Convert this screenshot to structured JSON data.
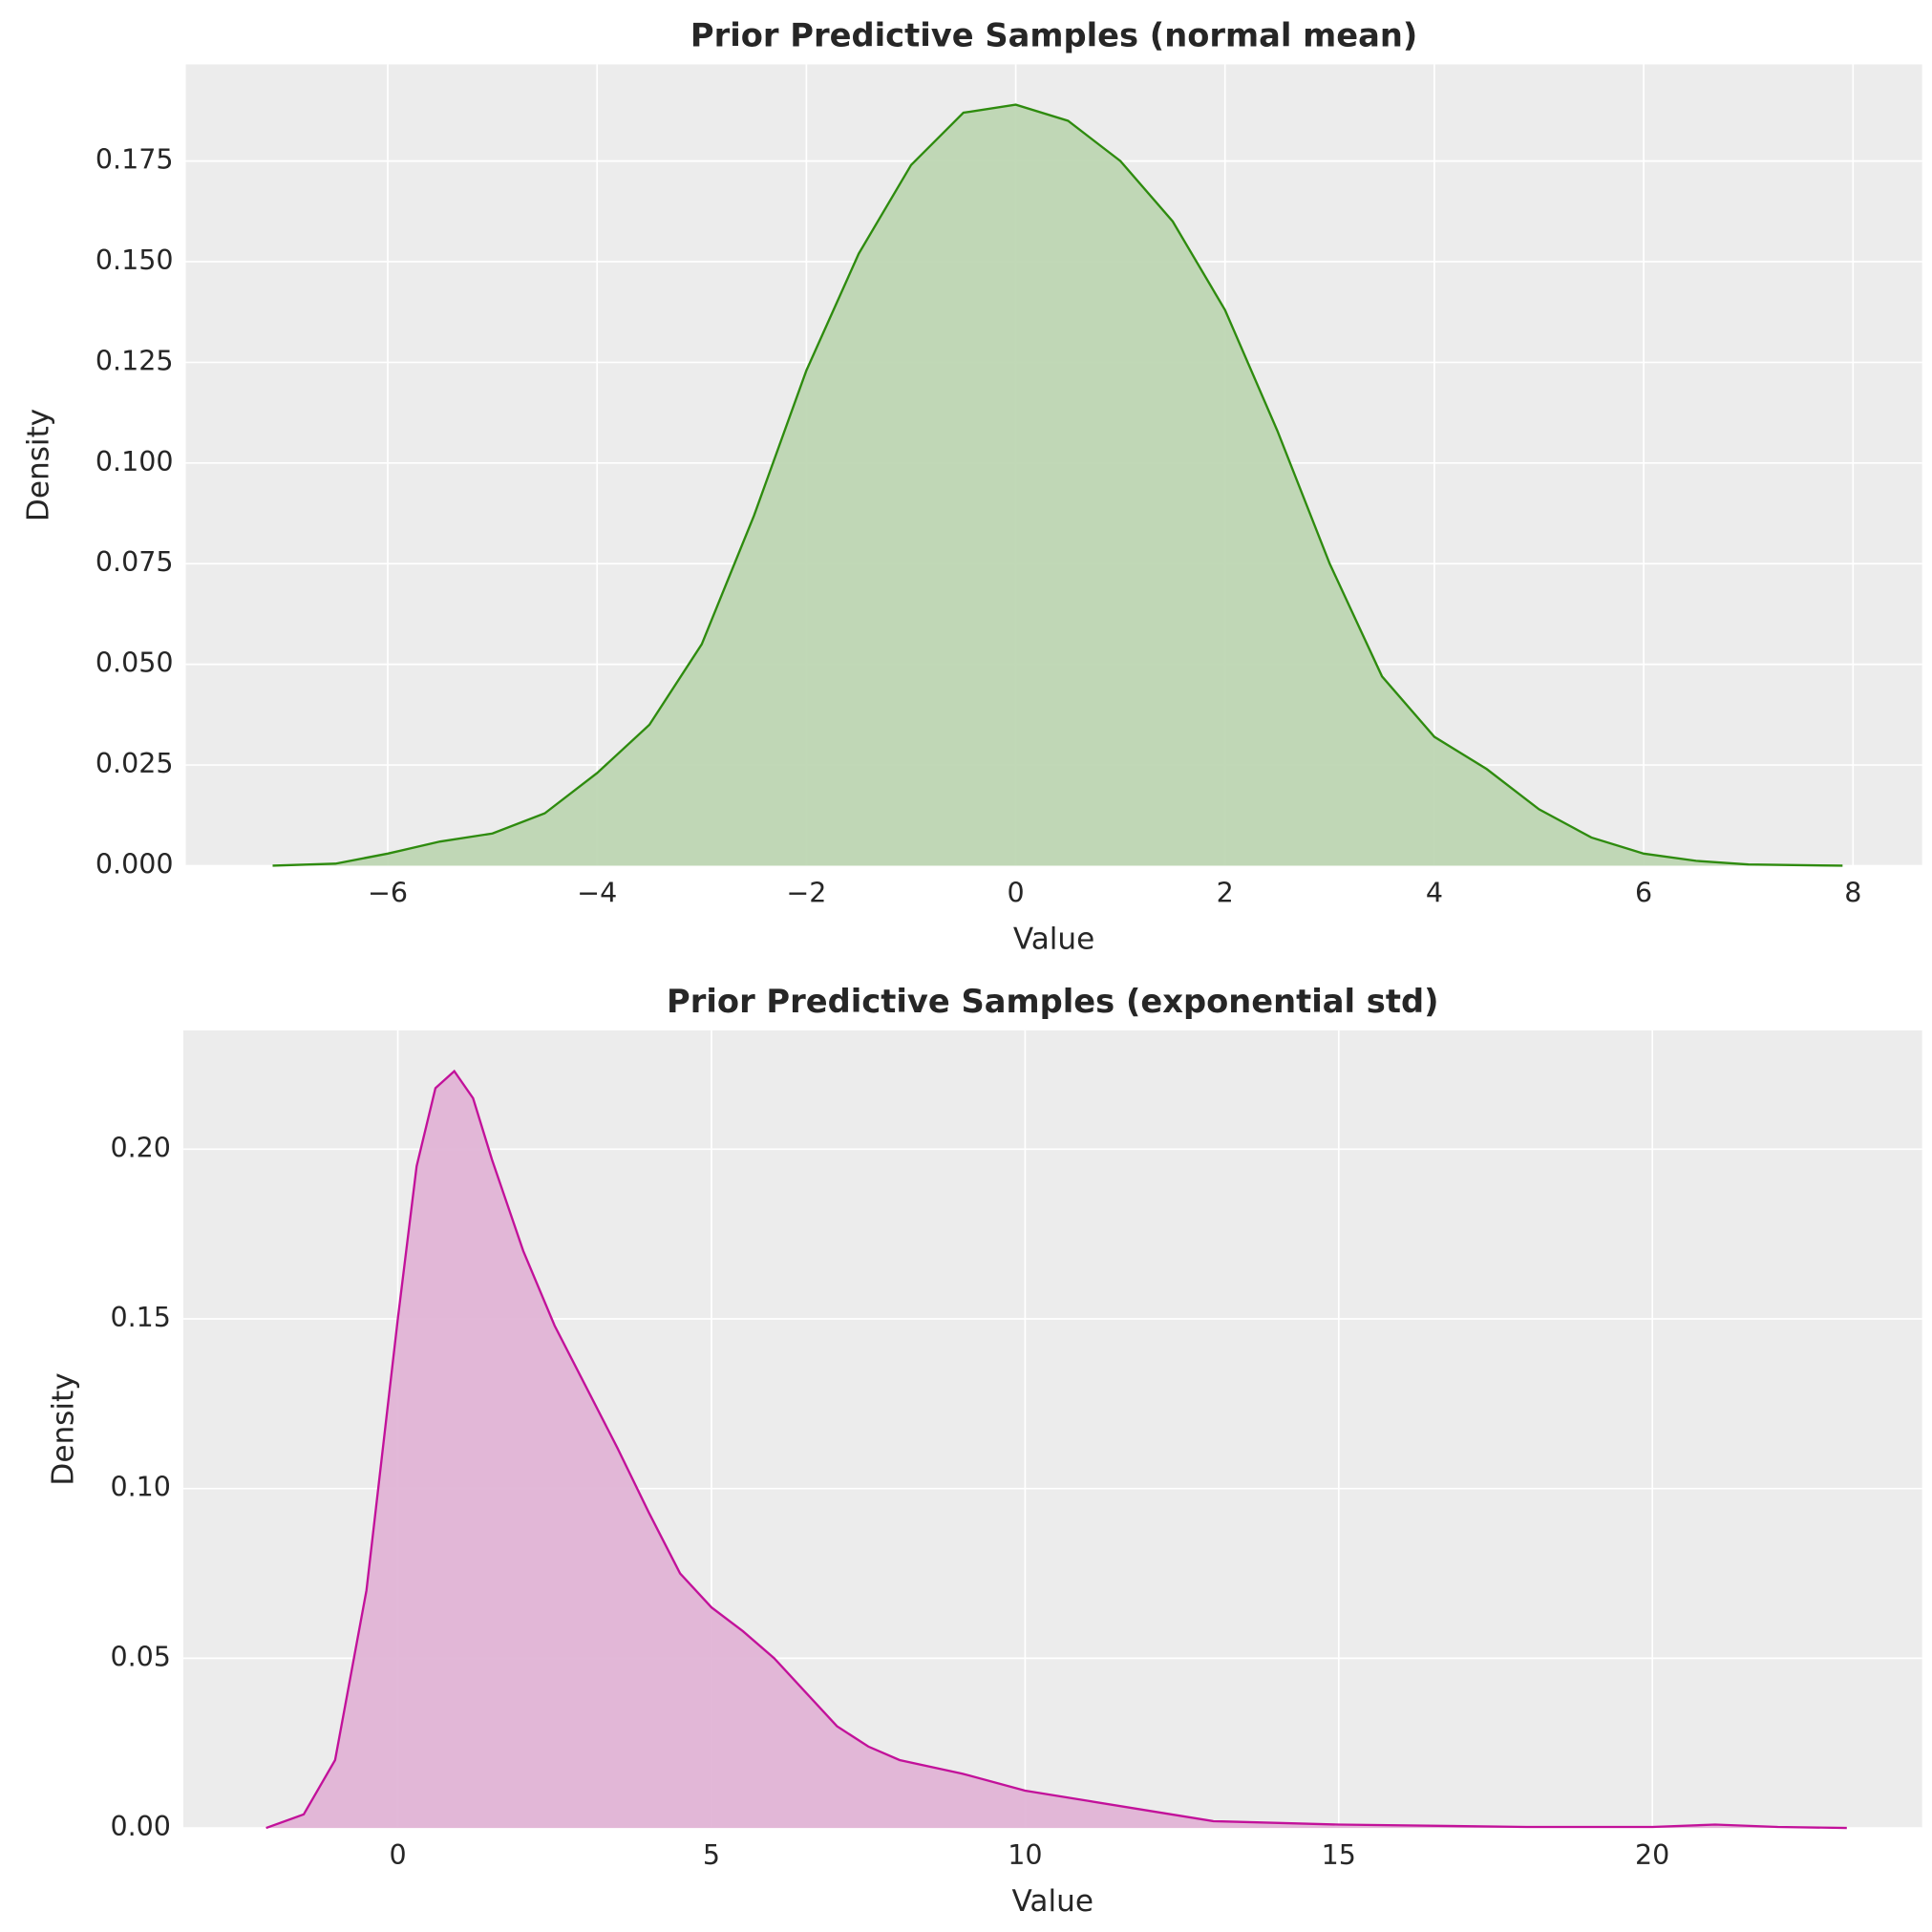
{
  "chart_data": [
    {
      "type": "area",
      "title": "Prior Predictive Samples (normal mean)",
      "x_label": "Value",
      "y_label": "Density",
      "x": [
        -7.1,
        -6.5,
        -6,
        -5.5,
        -5,
        -4.5,
        -4,
        -3.5,
        -3,
        -2.5,
        -2,
        -1.5,
        -1,
        -0.5,
        0,
        0.5,
        1,
        1.5,
        2,
        2.5,
        3,
        3.5,
        4,
        4.5,
        5,
        5.5,
        6,
        6.5,
        7,
        7.9
      ],
      "values": [
        0,
        0.0005,
        0.003,
        0.006,
        0.008,
        0.013,
        0.023,
        0.035,
        0.055,
        0.087,
        0.123,
        0.152,
        0.174,
        0.187,
        0.189,
        0.185,
        0.175,
        0.16,
        0.138,
        0.108,
        0.075,
        0.047,
        0.032,
        0.024,
        0.014,
        0.007,
        0.003,
        0.0012,
        0.0003,
        0
      ],
      "color": "#2e8b0e",
      "fill_color": "#bed6b3",
      "xlim": [
        -7.93,
        8.66
      ],
      "ylim": [
        0,
        0.199
      ],
      "xticks": [
        {
          "value": -6,
          "label": "−6"
        },
        {
          "value": -4,
          "label": "−4"
        },
        {
          "value": -2,
          "label": "−2"
        },
        0,
        2,
        4,
        6,
        8
      ],
      "yticks": [
        {
          "value": 0,
          "label": "0.000"
        },
        {
          "value": 0.025,
          "label": "0.025"
        },
        {
          "value": 0.05,
          "label": "0.050"
        },
        {
          "value": 0.075,
          "label": "0.075"
        },
        {
          "value": 0.1,
          "label": "0.100"
        },
        {
          "value": 0.125,
          "label": "0.125"
        },
        {
          "value": 0.15,
          "label": "0.150"
        },
        {
          "value": 0.175,
          "label": "0.175"
        }
      ],
      "grid": true
    },
    {
      "type": "area",
      "title": "Prior Predictive Samples (exponential std)",
      "x_label": "Value",
      "y_label": "Density",
      "x": [
        -2.1,
        -1.5,
        -1,
        -0.5,
        0,
        0.3,
        0.6,
        0.9,
        1.2,
        1.5,
        2,
        2.5,
        3,
        3.5,
        4,
        4.5,
        5,
        5.5,
        6,
        6.5,
        7,
        7.5,
        8,
        9,
        10,
        11,
        12,
        13,
        15,
        18,
        20,
        21,
        22,
        23.1
      ],
      "values": [
        0,
        0.004,
        0.02,
        0.07,
        0.15,
        0.195,
        0.218,
        0.223,
        0.215,
        0.197,
        0.17,
        0.148,
        0.13,
        0.112,
        0.093,
        0.075,
        0.065,
        0.058,
        0.05,
        0.04,
        0.03,
        0.024,
        0.02,
        0.016,
        0.011,
        0.008,
        0.005,
        0.002,
        0.001,
        0.0003,
        0.0003,
        0.001,
        0.0003,
        0
      ],
      "color": "#c2119a",
      "fill_color": "#e2b4d6",
      "xlim": [
        -3.42,
        24.3
      ],
      "ylim": [
        0,
        0.235
      ],
      "xticks": [
        0,
        5,
        10,
        15,
        20
      ],
      "yticks": [
        {
          "value": 0,
          "label": "0.00"
        },
        {
          "value": 0.05,
          "label": "0.05"
        },
        {
          "value": 0.1,
          "label": "0.10"
        },
        {
          "value": 0.15,
          "label": "0.15"
        },
        {
          "value": 0.2,
          "label": "0.20"
        }
      ],
      "grid": true
    }
  ]
}
